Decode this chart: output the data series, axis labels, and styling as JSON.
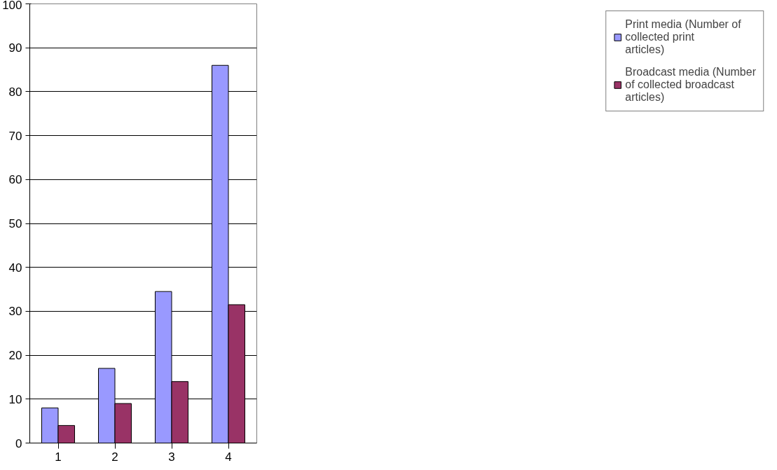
{
  "chart_data": {
    "type": "bar",
    "categories": [
      "1",
      "2",
      "3",
      "4"
    ],
    "series": [
      {
        "name": "Print media (Number of collected print articles)",
        "color": "#9999ff",
        "values": [
          8,
          17,
          34.5,
          86
        ]
      },
      {
        "name": "Broadcast media (Number of collected broadcast articles)",
        "color": "#993366",
        "values": [
          4,
          9,
          14,
          31.5
        ]
      }
    ],
    "ylim": [
      0,
      100
    ],
    "yticks": [
      0,
      10,
      20,
      30,
      40,
      50,
      60,
      70,
      80,
      90,
      100
    ],
    "grid": "y",
    "legend": "right"
  }
}
